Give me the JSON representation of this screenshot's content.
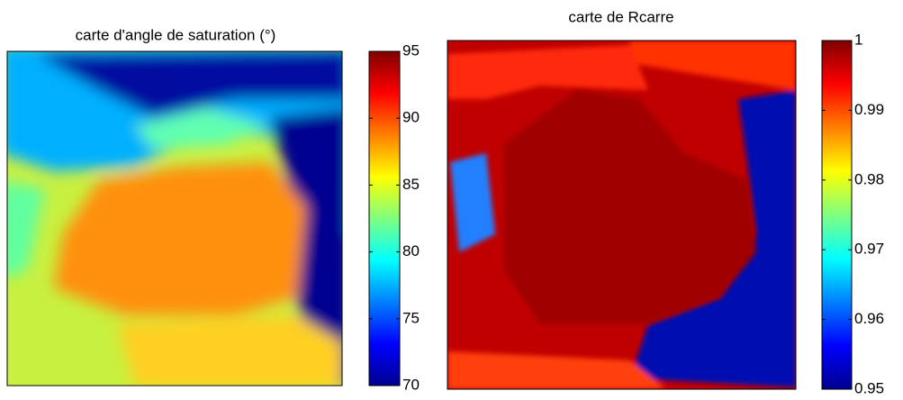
{
  "chart_data": [
    {
      "type": "heatmap",
      "title": "carte d'angle de saturation (°)",
      "colormap": "jet",
      "ylim": [
        70,
        95
      ],
      "yticks": [
        70,
        75,
        80,
        85,
        90,
        95
      ]
    },
    {
      "type": "heatmap",
      "title": "carte de Rcarre",
      "colormap": "jet",
      "ylim": [
        0.95,
        1
      ],
      "yticks": [
        0.95,
        0.96,
        0.97,
        0.98,
        0.99,
        1
      ]
    }
  ]
}
